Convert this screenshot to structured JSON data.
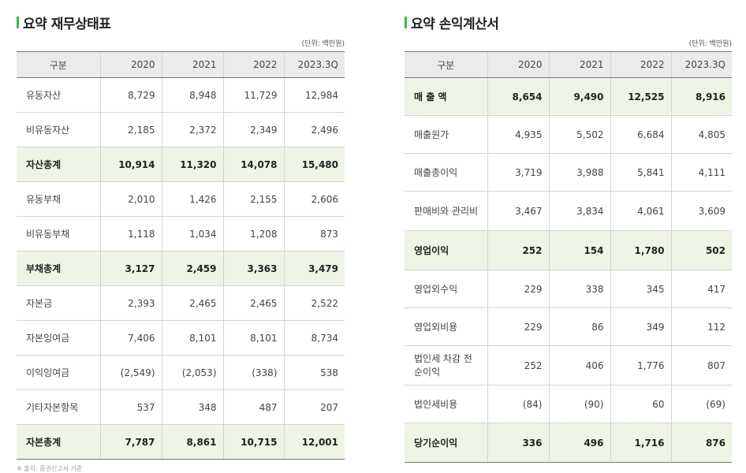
{
  "left": {
    "title": "요약 재무상태표",
    "unit": "(단위: 백만원)",
    "headers": [
      "구분",
      "2020",
      "2021",
      "2022",
      "2023.3Q"
    ],
    "rows": [
      [
        "유동자산",
        "8,729",
        "8,948",
        "11,729",
        "12,984"
      ],
      [
        "비유동자산",
        "2,185",
        "2,372",
        "2,349",
        "2,496"
      ],
      [
        "자산총계",
        "10,914",
        "11,320",
        "14,078",
        "15,480"
      ],
      [
        "유동부채",
        "2,010",
        "1,426",
        "2,155",
        "2,606"
      ],
      [
        "비유동부채",
        "1,118",
        "1,034",
        "1,208",
        "873"
      ],
      [
        "부채총계",
        "3,127",
        "2,459",
        "3,363",
        "3,479"
      ],
      [
        "자본금",
        "2,393",
        "2,465",
        "2,465",
        "2,522"
      ],
      [
        "자본잉여금",
        "7,406",
        "8,101",
        "8,101",
        "8,734"
      ],
      [
        "이익잉여금",
        "(2,549)",
        "(2,053)",
        "(338)",
        "538"
      ],
      [
        "기타자본항목",
        "537",
        "348",
        "487",
        "207"
      ],
      [
        "자본총계",
        "7,787",
        "8,861",
        "10,715",
        "12,001"
      ]
    ]
  },
  "right": {
    "title": "요약 손익계산서",
    "unit": "(단위: 백만원)",
    "headers": [
      "구분",
      "2020",
      "2021",
      "2022",
      "2023.3Q"
    ],
    "rows": [
      [
        "매 출 액",
        "8,654",
        "9,490",
        "12,525",
        "8,916"
      ],
      [
        "매출원가",
        "4,935",
        "5,502",
        "6,684",
        "4,805"
      ],
      [
        "매출총이익",
        "3,719",
        "3,988",
        "5,841",
        "4,111"
      ],
      [
        "판매비와 관리비",
        "3,467",
        "3,834",
        "4,061",
        "3,609"
      ],
      [
        "영업이익",
        "252",
        "154",
        "1,780",
        "502"
      ],
      [
        "영업외수익",
        "229",
        "338",
        "345",
        "417"
      ],
      [
        "영업외비용",
        "229",
        "86",
        "349",
        "112"
      ],
      [
        "법인세 차감 전 순이익",
        "252",
        "406",
        "1,776",
        "807"
      ],
      [
        "법인세비용",
        "(84)",
        "(90)",
        "60",
        "(69)"
      ],
      [
        "당기순이익",
        "336",
        "496",
        "1,716",
        "876"
      ]
    ]
  },
  "source": "※ 출처: 증권신고서 기준",
  "accent_color": "#3bb54a",
  "total_row_bg": "#eef5e7"
}
